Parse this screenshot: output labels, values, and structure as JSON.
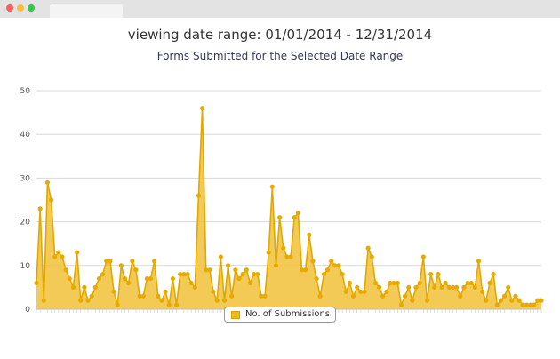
{
  "header": {
    "range_title": "viewing date range: 01/01/2014 - 12/31/2014"
  },
  "chart_data": {
    "type": "area",
    "title": "Forms Submitted for the Selected Date Range",
    "xlabel": "",
    "ylabel": "",
    "ylim": [
      0,
      50
    ],
    "yticks": [
      "0",
      "10",
      "20",
      "30",
      "40",
      "50"
    ],
    "grid": true,
    "legend_placement": "bottom-center",
    "colors": {
      "fill": "#f2c13a",
      "line": "#e0a800",
      "point": "#e6aa00",
      "grid": "#d8d8d8"
    },
    "series": [
      {
        "name": "No. of Submissions",
        "values": [
          6,
          23,
          2,
          29,
          25,
          12,
          13,
          12,
          9,
          7,
          5,
          13,
          2,
          5,
          2,
          3,
          5,
          7,
          8,
          11,
          11,
          4,
          1,
          10,
          7,
          6,
          11,
          9,
          3,
          3,
          7,
          7,
          11,
          3,
          2,
          4,
          1,
          7,
          1,
          8,
          8,
          8,
          6,
          5,
          26,
          46,
          9,
          9,
          4,
          2,
          12,
          2,
          10,
          3,
          9,
          7,
          8,
          9,
          6,
          8,
          8,
          3,
          3,
          13,
          28,
          10,
          21,
          14,
          12,
          12,
          21,
          22,
          9,
          9,
          17,
          11,
          7,
          3,
          8,
          9,
          11,
          10,
          10,
          8,
          4,
          6,
          3,
          5,
          4,
          4,
          14,
          12,
          6,
          5,
          3,
          4,
          6,
          6,
          6,
          1,
          3,
          5,
          2,
          5,
          6,
          12,
          2,
          8,
          5,
          8,
          5,
          6,
          5,
          5,
          5,
          3,
          5,
          6,
          6,
          5,
          11,
          4,
          2,
          6,
          8,
          1,
          2,
          3,
          5,
          2,
          3,
          2,
          1,
          1,
          1,
          1,
          2,
          2
        ]
      }
    ]
  }
}
